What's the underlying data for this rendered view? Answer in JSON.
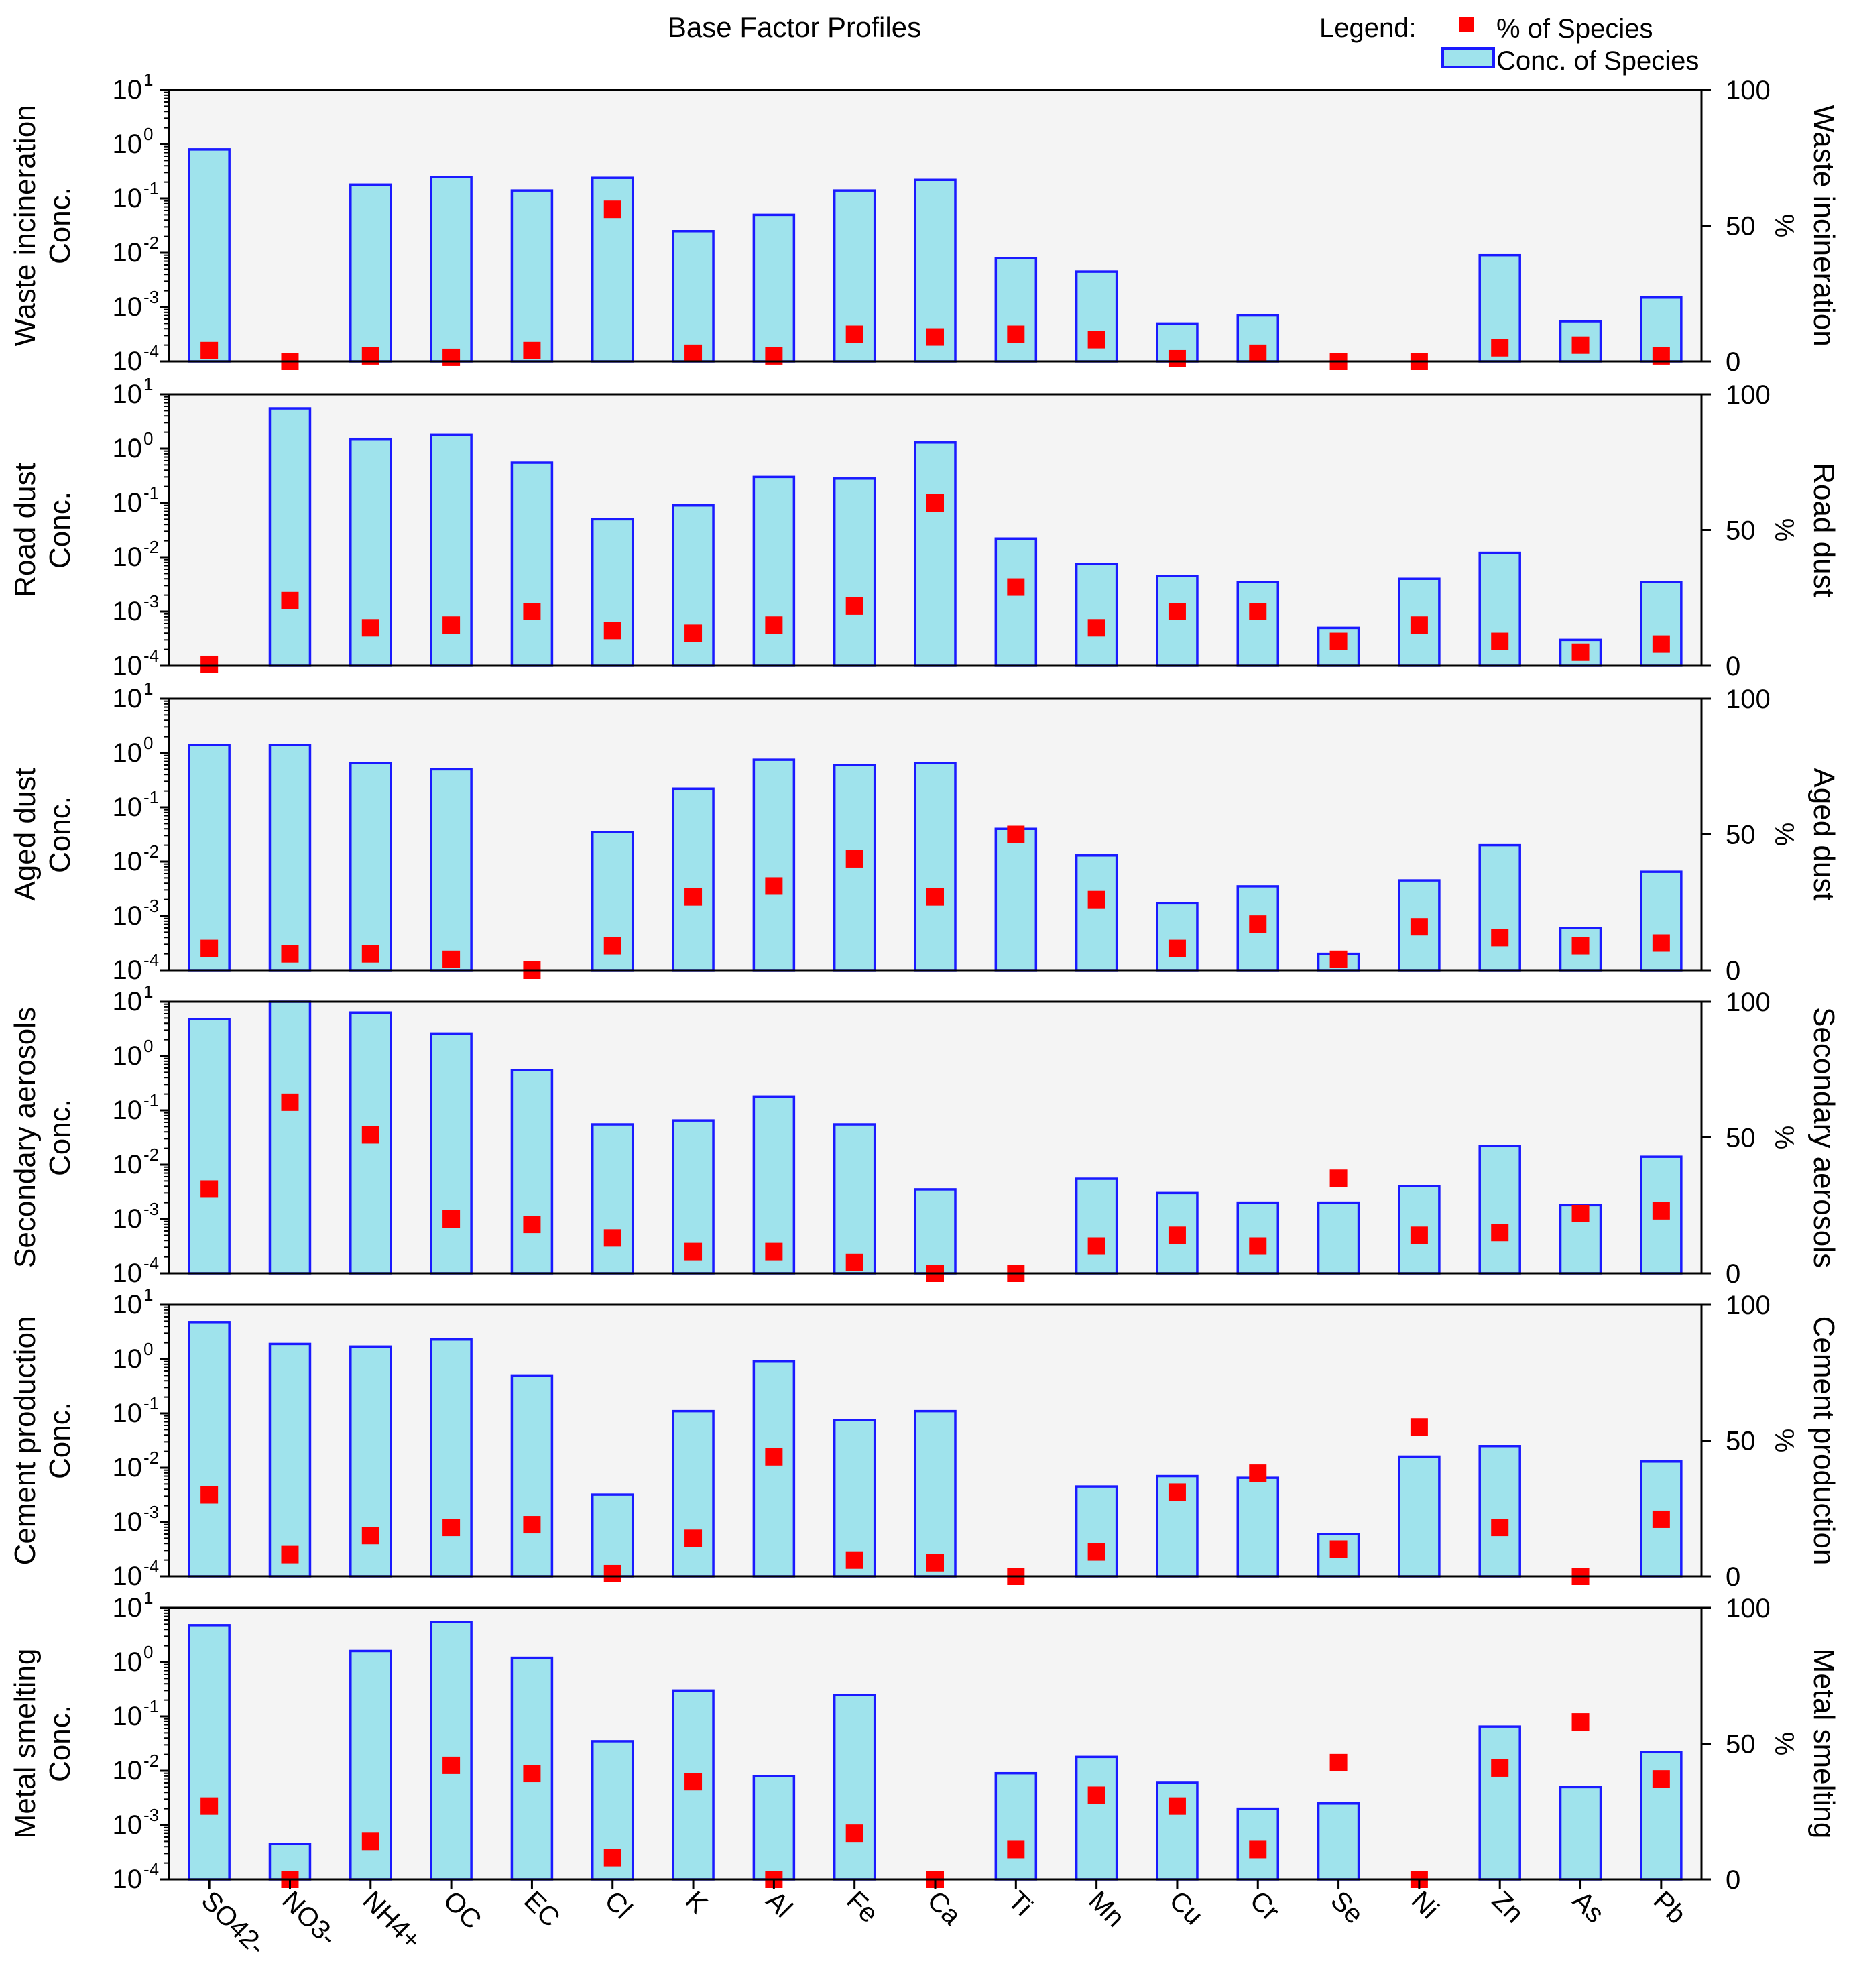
{
  "chart_data": {
    "type": "bar",
    "title": "Base Factor Profiles",
    "legend": {
      "label": "Legend:",
      "entries": [
        {
          "name": "% of Species",
          "marker": "square",
          "color": "#ff0000"
        },
        {
          "name": "Conc. of Species",
          "marker": "bar",
          "fill": "#9fe3ec",
          "stroke": "#1a1aff"
        }
      ],
      "position": "top-right"
    },
    "categories": [
      "SO42-",
      "NO3-",
      "NH4+",
      "OC",
      "EC",
      "Cl",
      "K",
      "Al",
      "Fe",
      "Ca",
      "Ti",
      "Mn",
      "Cu",
      "Cr",
      "Se",
      "Ni",
      "Zn",
      "As",
      "Pb"
    ],
    "left_axis": {
      "label": "Conc.",
      "scale": "log",
      "ylim": [
        0.0001,
        10
      ],
      "ticks": [
        {
          "base": "10",
          "exp": "1"
        },
        {
          "base": "10",
          "exp": "0"
        },
        {
          "base": "10",
          "exp": "-1"
        },
        {
          "base": "10",
          "exp": "-2"
        },
        {
          "base": "10",
          "exp": "-3"
        },
        {
          "base": "10",
          "exp": "-4"
        }
      ]
    },
    "right_axis": {
      "label": "%",
      "ylim": [
        0,
        100
      ],
      "ticks": [
        "100",
        "50",
        "0"
      ]
    },
    "panels": [
      {
        "name": "Waste incineration",
        "conc": [
          0.8,
          null,
          0.18,
          0.25,
          0.14,
          0.24,
          0.025,
          0.05,
          0.14,
          0.22,
          0.008,
          0.0045,
          0.0005,
          0.0007,
          null,
          null,
          0.009,
          0.00055,
          0.0015
        ],
        "percent": [
          4,
          0,
          2,
          1.5,
          4,
          56,
          3,
          2,
          10,
          9,
          10,
          8,
          1,
          3,
          0,
          0,
          5,
          6,
          2
        ]
      },
      {
        "name": "Road dust",
        "conc": [
          null,
          5.5,
          1.5,
          1.8,
          0.55,
          0.05,
          0.09,
          0.3,
          0.28,
          1.3,
          0.022,
          0.0075,
          0.0045,
          0.0035,
          0.0005,
          0.004,
          0.012,
          0.0003,
          0.0035
        ],
        "percent": [
          0.5,
          24,
          14,
          15,
          20,
          13,
          12,
          15,
          22,
          60,
          29,
          14,
          20,
          20,
          9,
          15,
          9,
          5,
          8
        ]
      },
      {
        "name": "Aged dust",
        "conc": [
          1.4,
          1.4,
          0.65,
          0.5,
          null,
          0.035,
          0.22,
          0.75,
          0.6,
          0.65,
          0.04,
          0.013,
          0.0017,
          0.0035,
          0.0002,
          0.0045,
          0.02,
          0.0006,
          0.0065
        ],
        "percent": [
          8,
          6,
          6,
          4,
          0,
          9,
          27,
          31,
          41,
          27,
          50,
          26,
          8,
          17,
          4,
          16,
          12,
          9,
          10
        ]
      },
      {
        "name": "Secondary aerosols",
        "conc": [
          4.8,
          17,
          6.3,
          2.6,
          0.55,
          0.055,
          0.065,
          0.18,
          0.055,
          0.0035,
          null,
          0.0055,
          0.003,
          0.002,
          0.002,
          0.004,
          0.022,
          0.0018,
          0.014
        ],
        "percent": [
          31,
          63,
          51,
          20,
          18,
          13,
          8,
          8,
          4,
          0,
          0,
          10,
          14,
          10,
          35,
          14,
          15,
          22,
          23
        ]
      },
      {
        "name": "Cement production",
        "conc": [
          4.8,
          1.9,
          1.7,
          2.3,
          0.5,
          0.0032,
          0.11,
          0.9,
          0.075,
          0.11,
          null,
          0.0045,
          0.007,
          0.0065,
          0.0006,
          0.016,
          0.025,
          null,
          0.013
        ],
        "percent": [
          30,
          8,
          15,
          18,
          19,
          1,
          14,
          44,
          6,
          5,
          0,
          9,
          31,
          38,
          10,
          55,
          18,
          0,
          21
        ]
      },
      {
        "name": "Metal smelting",
        "conc": [
          4.8,
          0.00045,
          1.6,
          5.5,
          1.2,
          0.035,
          0.3,
          0.008,
          0.25,
          null,
          0.009,
          0.018,
          0.006,
          0.002,
          0.0025,
          null,
          0.065,
          0.005,
          0.022
        ],
        "percent": [
          27,
          0,
          14,
          42,
          39,
          8,
          36,
          0,
          17,
          0,
          11,
          31,
          27,
          11,
          43,
          0,
          41,
          58,
          37
        ]
      }
    ]
  }
}
